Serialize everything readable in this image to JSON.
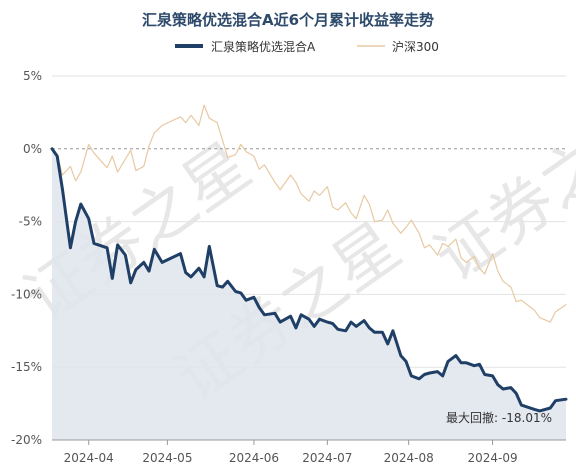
{
  "chart_data": {
    "type": "line",
    "title": "汇泉策略优选混合A近6个月累计收益率走势",
    "watermark": "证券之星",
    "ylim": [
      -20,
      5
    ],
    "yticks": [
      5,
      0,
      -5,
      -10,
      -15,
      -20
    ],
    "ytick_labels": [
      "5%",
      "0%",
      "-5%",
      "-10%",
      "-15%",
      "-20%"
    ],
    "xlim": [
      "2024-03-18",
      "2024-09-30"
    ],
    "xticks": [
      "2024-04-01",
      "2024-05-01",
      "2024-06-03",
      "2024-07-01",
      "2024-08-01",
      "2024-09-02"
    ],
    "xtick_labels": [
      "2024-04",
      "2024-05",
      "2024-06",
      "2024-07",
      "2024-08",
      "2024-09"
    ],
    "grid": true,
    "legend_position": "top",
    "colors": {
      "fund": "#1f3f66",
      "index": "#e8c9a3",
      "fund_fill": "#dfe5ec",
      "zero_line": "#999999"
    },
    "annotation": "最大回撤: -18.01%",
    "series": [
      {
        "name": "汇泉策略优选混合A",
        "x": [
          "2024-03-18",
          "2024-03-20",
          "2024-03-22",
          "2024-03-25",
          "2024-03-27",
          "2024-03-29",
          "2024-04-01",
          "2024-04-03",
          "2024-04-08",
          "2024-04-10",
          "2024-04-12",
          "2024-04-15",
          "2024-04-17",
          "2024-04-19",
          "2024-04-22",
          "2024-04-24",
          "2024-04-26",
          "2024-04-29",
          "2024-05-06",
          "2024-05-08",
          "2024-05-10",
          "2024-05-13",
          "2024-05-15",
          "2024-05-17",
          "2024-05-20",
          "2024-05-22",
          "2024-05-24",
          "2024-05-27",
          "2024-05-29",
          "2024-05-31",
          "2024-06-03",
          "2024-06-05",
          "2024-06-07",
          "2024-06-11",
          "2024-06-13",
          "2024-06-17",
          "2024-06-19",
          "2024-06-21",
          "2024-06-24",
          "2024-06-26",
          "2024-06-28",
          "2024-07-01",
          "2024-07-03",
          "2024-07-05",
          "2024-07-08",
          "2024-07-10",
          "2024-07-12",
          "2024-07-15",
          "2024-07-17",
          "2024-07-19",
          "2024-07-22",
          "2024-07-24",
          "2024-07-26",
          "2024-07-29",
          "2024-07-31",
          "2024-08-02",
          "2024-08-05",
          "2024-08-07",
          "2024-08-09",
          "2024-08-12",
          "2024-08-14",
          "2024-08-16",
          "2024-08-19",
          "2024-08-21",
          "2024-08-23",
          "2024-08-26",
          "2024-08-28",
          "2024-08-30",
          "2024-09-02",
          "2024-09-04",
          "2024-09-06",
          "2024-09-09",
          "2024-09-11",
          "2024-09-13",
          "2024-09-18",
          "2024-09-20",
          "2024-09-24",
          "2024-09-26",
          "2024-09-30"
        ],
        "values": [
          0,
          -0.5,
          -2.8,
          -6.8,
          -5,
          -3.8,
          -4.8,
          -6.5,
          -6.8,
          -8.9,
          -6.6,
          -7.3,
          -9.2,
          -8.3,
          -7.8,
          -8.4,
          -6.9,
          -7.8,
          -7.2,
          -8.5,
          -8.8,
          -8.2,
          -8.8,
          -6.7,
          -9.4,
          -9.5,
          -9.1,
          -9.8,
          -9.9,
          -10.4,
          -10.2,
          -10.9,
          -11.4,
          -11.3,
          -11.9,
          -11.5,
          -12.3,
          -11.4,
          -11.7,
          -12.2,
          -11.7,
          -11.9,
          -12,
          -12.4,
          -12.5,
          -11.9,
          -12.2,
          -11.8,
          -12.3,
          -12.6,
          -12.6,
          -13.4,
          -12.5,
          -14.2,
          -14.6,
          -15.6,
          -15.8,
          -15.5,
          -15.4,
          -15.3,
          -15.6,
          -14.6,
          -14.2,
          -14.7,
          -14.7,
          -14.9,
          -14.8,
          -15.5,
          -15.6,
          -16.2,
          -16.5,
          -16.4,
          -16.8,
          -17.6,
          -17.9,
          -18,
          -17.8,
          -17.3,
          -17.2
        ]
      },
      {
        "name": "沪深300",
        "x": [
          "2024-03-18",
          "2024-03-20",
          "2024-03-22",
          "2024-03-25",
          "2024-03-27",
          "2024-03-29",
          "2024-04-01",
          "2024-04-03",
          "2024-04-08",
          "2024-04-10",
          "2024-04-12",
          "2024-04-15",
          "2024-04-17",
          "2024-04-19",
          "2024-04-22",
          "2024-04-24",
          "2024-04-26",
          "2024-04-29",
          "2024-05-06",
          "2024-05-08",
          "2024-05-10",
          "2024-05-13",
          "2024-05-15",
          "2024-05-17",
          "2024-05-20",
          "2024-05-22",
          "2024-05-24",
          "2024-05-27",
          "2024-05-29",
          "2024-05-31",
          "2024-06-03",
          "2024-06-05",
          "2024-06-07",
          "2024-06-11",
          "2024-06-13",
          "2024-06-17",
          "2024-06-19",
          "2024-06-21",
          "2024-06-24",
          "2024-06-26",
          "2024-06-28",
          "2024-07-01",
          "2024-07-03",
          "2024-07-05",
          "2024-07-08",
          "2024-07-10",
          "2024-07-12",
          "2024-07-15",
          "2024-07-17",
          "2024-07-19",
          "2024-07-22",
          "2024-07-24",
          "2024-07-26",
          "2024-07-29",
          "2024-07-31",
          "2024-08-02",
          "2024-08-05",
          "2024-08-07",
          "2024-08-09",
          "2024-08-12",
          "2024-08-14",
          "2024-08-16",
          "2024-08-19",
          "2024-08-21",
          "2024-08-23",
          "2024-08-26",
          "2024-08-28",
          "2024-08-30",
          "2024-09-02",
          "2024-09-04",
          "2024-09-06",
          "2024-09-09",
          "2024-09-11",
          "2024-09-13",
          "2024-09-18",
          "2024-09-20",
          "2024-09-24",
          "2024-09-26",
          "2024-09-30"
        ],
        "values": [
          0,
          -0.4,
          -1.8,
          -1.2,
          -2.2,
          -1.6,
          0.3,
          -0.3,
          -1.3,
          -0.5,
          -1.6,
          -0.7,
          -0.1,
          -1.5,
          -1.2,
          0.2,
          1.1,
          1.6,
          2.2,
          1.8,
          2.3,
          1.6,
          3,
          2.1,
          1.8,
          0.6,
          -0.6,
          -0.4,
          0.3,
          -0.2,
          -0.5,
          -1.4,
          -1.1,
          -2.3,
          -2.8,
          -1.8,
          -2.3,
          -3.1,
          -3.6,
          -2.9,
          -3.2,
          -2.6,
          -4,
          -4.2,
          -3.7,
          -4.4,
          -4.8,
          -3.2,
          -3.8,
          -5,
          -4.9,
          -4.2,
          -5.1,
          -5.8,
          -5.4,
          -4.9,
          -5.8,
          -6.8,
          -6.6,
          -7.3,
          -6.5,
          -6.7,
          -6.2,
          -7.5,
          -7.8,
          -7.4,
          -8.2,
          -8.6,
          -7.2,
          -8.4,
          -9.1,
          -9.5,
          -10.5,
          -10.4,
          -11.1,
          -11.6,
          -11.9,
          -11.2,
          -10.7
        ]
      }
    ]
  }
}
